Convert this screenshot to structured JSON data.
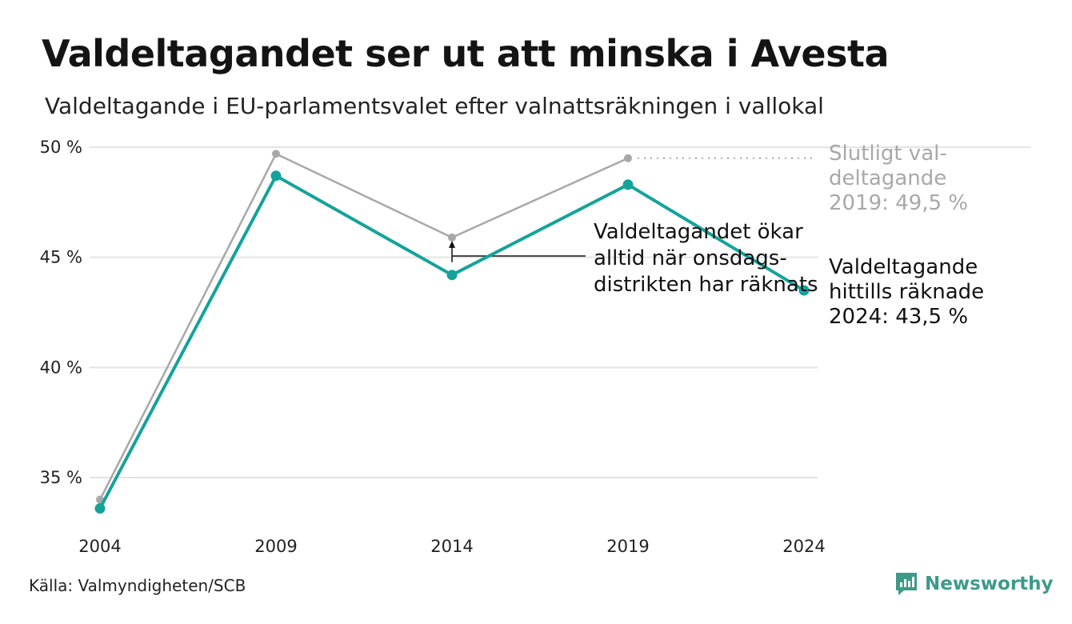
{
  "header": {
    "title": "Valdeltagandet ser ut att minska i Avesta",
    "subtitle": "Valdeltagande i EU-parlamentsvalet efter valnattsräkningen i vallokal"
  },
  "footer": {
    "source": "Källa: Valmyndigheten/SCB",
    "brand": "Newsworthy"
  },
  "colors": {
    "teal": "#14a39a",
    "gray": "#a8a8a8",
    "grid": "#e3e3e3"
  },
  "chart_data": {
    "type": "line",
    "x": [
      "2004",
      "2009",
      "2014",
      "2019",
      "2024"
    ],
    "ylim": [
      33,
      50
    ],
    "yticks": [
      35,
      40,
      45,
      50
    ],
    "ytick_labels": [
      "35 %",
      "40 %",
      "45 %",
      "50 %"
    ],
    "grid": true,
    "series": [
      {
        "values": [
          34.0,
          49.7,
          45.9,
          49.5,
          null
        ],
        "color": "#a8a8a8"
      },
      {
        "values": [
          33.6,
          48.7,
          44.2,
          48.3,
          43.5
        ],
        "color": "#14a39a"
      }
    ],
    "annotations": {
      "final_2019": [
        "Slutligt val-",
        "deltagande",
        "2019: 49,5 %"
      ],
      "counted_2024": [
        "Valdeltagande",
        "hittills räknade",
        "2024: 43,5 %"
      ],
      "wednesday": [
        "Valdeltagandet ökar",
        "alltid när onsdags-",
        "distrikten har räknats"
      ]
    }
  }
}
